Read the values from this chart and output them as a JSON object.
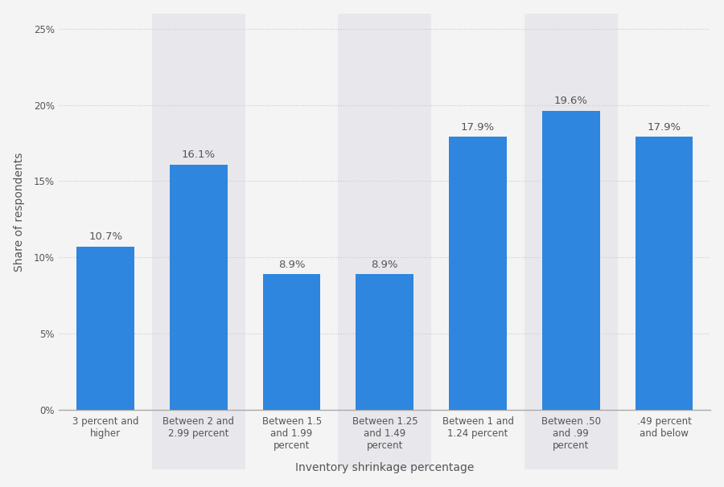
{
  "categories": [
    "3 percent and\nhigher",
    "Between 2 and\n2.99 percent",
    "Between 1.5\nand 1.99\npercent",
    "Between 1.25\nand 1.49\npercent",
    "Between 1 and\n1.24 percent",
    "Between .50\nand .99\npercent",
    ".49 percent\nand below"
  ],
  "values": [
    10.7,
    16.1,
    8.9,
    8.9,
    17.9,
    19.6,
    17.9
  ],
  "labels": [
    "10.7%",
    "16.1%",
    "8.9%",
    "8.9%",
    "17.9%",
    "19.6%",
    "17.9%"
  ],
  "bar_color": "#2e86de",
  "background_color": "#f4f4f4",
  "plot_bg_color": "#f4f4f4",
  "col_highlight_color": "#e8e8ec",
  "col_highlight_indices": [
    1,
    3,
    5
  ],
  "ylabel": "Share of respondents",
  "xlabel": "Inventory shrinkage percentage",
  "yticks": [
    0,
    5,
    10,
    15,
    20,
    25
  ],
  "ytick_labels": [
    "0%",
    "5%",
    "10%",
    "15%",
    "20%",
    "25%"
  ],
  "ylim": [
    0,
    26
  ],
  "grid_color": "#c8c8d0",
  "label_color": "#555555",
  "label_fontsize": 9.5,
  "axis_label_fontsize": 10,
  "tick_label_fontsize": 8.5
}
